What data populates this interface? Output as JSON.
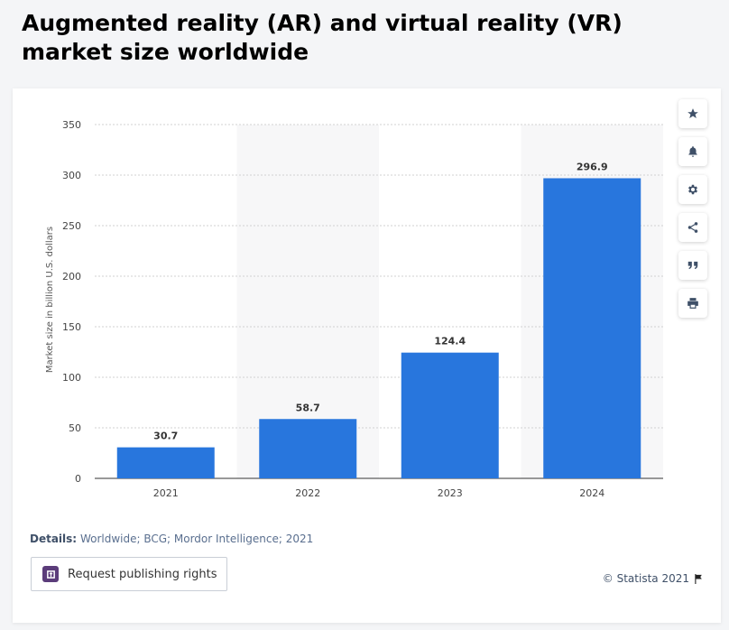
{
  "title": "Augmented reality (AR) and virtual reality (VR) market size worldwide",
  "details": {
    "label": "Details:",
    "text": "Worldwide; BCG; Mordor Intelligence; 2021"
  },
  "publish_button": {
    "label": "Request publishing rights"
  },
  "copyright": "© Statista 2021",
  "toolbar": {
    "icons": [
      "star-icon",
      "bell-icon",
      "gear-icon",
      "share-icon",
      "quote-icon",
      "print-icon"
    ]
  },
  "colors": {
    "bar": "#2876dd",
    "band": "#f7f7f8",
    "grid": "#d2d2d2"
  },
  "chart_data": {
    "type": "bar",
    "categories": [
      "2021",
      "2022",
      "2023",
      "2024"
    ],
    "values": [
      30.7,
      58.7,
      124.4,
      296.9
    ],
    "value_labels": [
      "30.7",
      "58.7",
      "124.4",
      "296.9"
    ],
    "ylabel": "Market size in billion U.S. dollars",
    "ylim": [
      0,
      350
    ],
    "yticks": [
      "0",
      "50",
      "100",
      "150",
      "200",
      "250",
      "300",
      "350"
    ],
    "grid": true,
    "legend": "none"
  }
}
